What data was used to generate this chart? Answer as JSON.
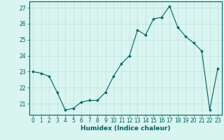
{
  "x": [
    0,
    1,
    2,
    3,
    4,
    5,
    6,
    7,
    8,
    9,
    10,
    11,
    12,
    13,
    14,
    15,
    16,
    17,
    18,
    19,
    20,
    21,
    22,
    23
  ],
  "y": [
    23.0,
    22.9,
    22.7,
    21.7,
    20.6,
    20.7,
    21.1,
    21.2,
    21.2,
    21.7,
    22.7,
    23.5,
    24.0,
    25.6,
    25.3,
    26.3,
    26.4,
    27.1,
    25.8,
    25.2,
    24.8,
    24.3,
    20.6,
    23.2
  ],
  "line_color": "#006060",
  "marker": "D",
  "marker_size": 1.8,
  "bg_color": "#d8f5f0",
  "grid_color": "#c0dede",
  "xlabel": "Humidex (Indice chaleur)",
  "xlim": [
    -0.5,
    23.5
  ],
  "ylim": [
    20.3,
    27.4
  ],
  "yticks": [
    21,
    22,
    23,
    24,
    25,
    26,
    27
  ],
  "xticks": [
    0,
    1,
    2,
    3,
    4,
    5,
    6,
    7,
    8,
    9,
    10,
    11,
    12,
    13,
    14,
    15,
    16,
    17,
    18,
    19,
    20,
    21,
    22,
    23
  ],
  "tick_fontsize": 5.5,
  "xlabel_fontsize": 6.5,
  "axis_color": "#006060",
  "tick_color": "#006060"
}
